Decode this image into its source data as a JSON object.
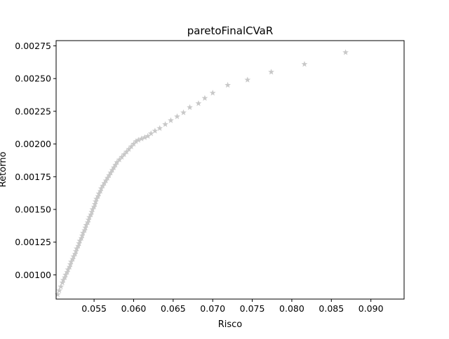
{
  "chart_data": {
    "type": "scatter",
    "title": "paretoFinalCVaR",
    "xlabel": "Risco",
    "ylabel": "Retorno",
    "xlim": [
      0.0502,
      0.0942
    ],
    "ylim": [
      0.000815,
      0.00279
    ],
    "x_ticks": [
      0.055,
      0.06,
      0.065,
      0.07,
      0.075,
      0.08,
      0.085,
      0.09
    ],
    "x_tick_labels": [
      "0.055",
      "0.060",
      "0.065",
      "0.070",
      "0.075",
      "0.080",
      "0.085",
      "0.090"
    ],
    "y_ticks": [
      0.001,
      0.00125,
      0.0015,
      0.00175,
      0.002,
      0.00225,
      0.0025,
      0.00275
    ],
    "y_tick_labels": [
      "0.00100",
      "0.00125",
      "0.00150",
      "0.00175",
      "0.00200",
      "0.00225",
      "0.00250",
      "0.00275"
    ],
    "grid": false,
    "marker": "star",
    "marker_color": "#c8c8c8",
    "series": [
      {
        "x": [
          0.0504,
          0.0506,
          0.0508,
          0.051,
          0.0511,
          0.0513,
          0.0514,
          0.0516,
          0.0517,
          0.0519,
          0.052,
          0.0521,
          0.0523,
          0.0524,
          0.0526,
          0.0527,
          0.0528,
          0.053,
          0.0531,
          0.0532,
          0.0534,
          0.0535,
          0.0536,
          0.0538,
          0.0539,
          0.054,
          0.0542,
          0.0543,
          0.0544,
          0.0546,
          0.0547,
          0.0548,
          0.055,
          0.0551,
          0.0552,
          0.0553,
          0.0555,
          0.0556,
          0.0558,
          0.0559,
          0.0561,
          0.0563,
          0.0565,
          0.0567,
          0.0569,
          0.0571,
          0.0573,
          0.0575,
          0.0577,
          0.0579,
          0.0582,
          0.0585,
          0.0588,
          0.0591,
          0.0594,
          0.0597,
          0.06,
          0.0603,
          0.0606,
          0.061,
          0.0614,
          0.0618,
          0.0622,
          0.0627,
          0.0633,
          0.064,
          0.0647,
          0.0655,
          0.0663,
          0.0671,
          0.0682,
          0.069,
          0.07,
          0.0719,
          0.0744,
          0.0774,
          0.0816,
          0.0868
        ],
        "y": [
          0.00085,
          0.00088,
          0.00091,
          0.00094,
          0.00096,
          0.00098,
          0.001,
          0.00102,
          0.00104,
          0.00106,
          0.00108,
          0.0011,
          0.00112,
          0.00114,
          0.00116,
          0.00118,
          0.0012,
          0.00122,
          0.00124,
          0.00126,
          0.00128,
          0.0013,
          0.00132,
          0.00134,
          0.00136,
          0.00138,
          0.0014,
          0.00142,
          0.00144,
          0.00146,
          0.00148,
          0.0015,
          0.00152,
          0.00154,
          0.00156,
          0.00158,
          0.0016,
          0.00162,
          0.00164,
          0.00166,
          0.00168,
          0.0017,
          0.00172,
          0.00174,
          0.00176,
          0.00178,
          0.0018,
          0.00182,
          0.00184,
          0.00186,
          0.00188,
          0.0019,
          0.00192,
          0.00194,
          0.00196,
          0.00198,
          0.002,
          0.00202,
          0.00203,
          0.00204,
          0.00205,
          0.00206,
          0.00208,
          0.0021,
          0.00212,
          0.00215,
          0.00218,
          0.00221,
          0.00224,
          0.00228,
          0.00231,
          0.00235,
          0.00239,
          0.00245,
          0.00249,
          0.00255,
          0.00261,
          0.0027
        ]
      }
    ]
  }
}
